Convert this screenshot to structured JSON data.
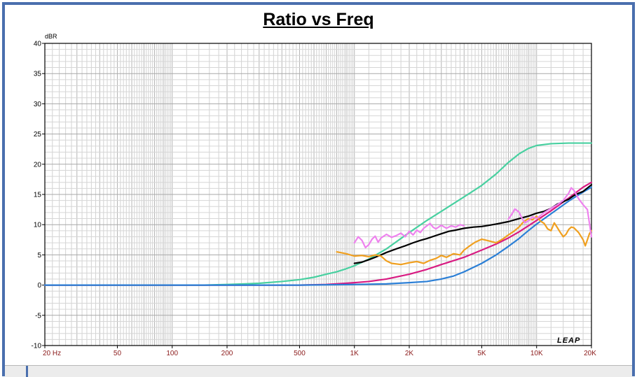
{
  "chart_data": {
    "type": "line",
    "title": "Ratio vs Freq",
    "ylabel": "dBR",
    "xlabel": "",
    "xscale": "log",
    "xlim": [
      20,
      20000
    ],
    "ylim": [
      -10,
      40
    ],
    "grid": true,
    "logo": "LEAP",
    "y_ticks": [
      {
        "v": 40,
        "label": "40"
      },
      {
        "v": 35,
        "label": "35"
      },
      {
        "v": 30,
        "label": "30"
      },
      {
        "v": 25,
        "label": "25"
      },
      {
        "v": 20,
        "label": "20"
      },
      {
        "v": 15,
        "label": "15"
      },
      {
        "v": 10,
        "label": "10"
      },
      {
        "v": 5,
        "label": "5"
      },
      {
        "v": 0,
        "label": "0"
      },
      {
        "v": -5,
        "label": "-5"
      },
      {
        "v": -10,
        "label": "-10"
      }
    ],
    "x_ticks": [
      {
        "v": 20,
        "label": "20  Hz"
      },
      {
        "v": 50,
        "label": "50"
      },
      {
        "v": 100,
        "label": "100"
      },
      {
        "v": 200,
        "label": "200"
      },
      {
        "v": 500,
        "label": "500"
      },
      {
        "v": 1000,
        "label": "1K"
      },
      {
        "v": 2000,
        "label": "2K"
      },
      {
        "v": 5000,
        "label": "5K"
      },
      {
        "v": 10000,
        "label": "10K"
      },
      {
        "v": 20000,
        "label": "20K"
      }
    ],
    "series": [
      {
        "color": "#48d0a0",
        "points": [
          [
            20,
            0
          ],
          [
            100,
            0
          ],
          [
            150,
            0
          ],
          [
            200,
            0.1
          ],
          [
            250,
            0.2
          ],
          [
            300,
            0.3
          ],
          [
            400,
            0.6
          ],
          [
            500,
            0.9
          ],
          [
            600,
            1.3
          ],
          [
            700,
            1.8
          ],
          [
            800,
            2.2
          ],
          [
            900,
            2.7
          ],
          [
            1000,
            3.2
          ],
          [
            1200,
            4.3
          ],
          [
            1500,
            6.0
          ],
          [
            2000,
            8.7
          ],
          [
            2500,
            10.7
          ],
          [
            3000,
            12.2
          ],
          [
            4000,
            14.6
          ],
          [
            5000,
            16.5
          ],
          [
            6000,
            18.4
          ],
          [
            7000,
            20.3
          ],
          [
            8000,
            21.7
          ],
          [
            9000,
            22.6
          ],
          [
            10000,
            23.1
          ],
          [
            12000,
            23.4
          ],
          [
            15000,
            23.5
          ],
          [
            20000,
            23.5
          ]
        ]
      },
      {
        "color": "#d81b82",
        "points": [
          [
            20,
            0
          ],
          [
            300,
            0
          ],
          [
            500,
            0
          ],
          [
            700,
            0.1
          ],
          [
            900,
            0.3
          ],
          [
            1000,
            0.4
          ],
          [
            1200,
            0.6
          ],
          [
            1500,
            1.0
          ],
          [
            2000,
            1.8
          ],
          [
            2500,
            2.6
          ],
          [
            3000,
            3.4
          ],
          [
            4000,
            4.6
          ],
          [
            5000,
            5.8
          ],
          [
            6000,
            6.8
          ],
          [
            7000,
            7.8
          ],
          [
            8000,
            8.8
          ],
          [
            9000,
            9.8
          ],
          [
            10000,
            10.7
          ],
          [
            12000,
            12.3
          ],
          [
            15000,
            14.4
          ],
          [
            18000,
            16.2
          ],
          [
            20000,
            17.0
          ]
        ]
      },
      {
        "color": "#2b7fd6",
        "points": [
          [
            20,
            0
          ],
          [
            500,
            0
          ],
          [
            1000,
            0.1
          ],
          [
            1500,
            0.2
          ],
          [
            2000,
            0.4
          ],
          [
            2500,
            0.6
          ],
          [
            3000,
            1.0
          ],
          [
            3500,
            1.5
          ],
          [
            4000,
            2.2
          ],
          [
            5000,
            3.6
          ],
          [
            6000,
            5.0
          ],
          [
            7000,
            6.4
          ],
          [
            8000,
            7.7
          ],
          [
            9000,
            9.0
          ],
          [
            10000,
            10.1
          ],
          [
            12000,
            11.8
          ],
          [
            15000,
            13.9
          ],
          [
            18000,
            15.4
          ],
          [
            20000,
            16.2
          ]
        ]
      },
      {
        "color": "#000000",
        "points": [
          [
            1000,
            3.6
          ],
          [
            1100,
            3.8
          ],
          [
            1200,
            4.2
          ],
          [
            1300,
            4.6
          ],
          [
            1400,
            5.0
          ],
          [
            1500,
            5.4
          ],
          [
            1700,
            6.0
          ],
          [
            1900,
            6.5
          ],
          [
            2100,
            7.0
          ],
          [
            2300,
            7.4
          ],
          [
            2500,
            7.7
          ],
          [
            2800,
            8.2
          ],
          [
            3000,
            8.5
          ],
          [
            3300,
            8.9
          ],
          [
            3600,
            9.1
          ],
          [
            4000,
            9.4
          ],
          [
            4500,
            9.6
          ],
          [
            5000,
            9.7
          ],
          [
            5500,
            9.9
          ],
          [
            6000,
            10.1
          ],
          [
            7000,
            10.5
          ],
          [
            8000,
            11.0
          ],
          [
            9000,
            11.4
          ],
          [
            10000,
            11.9
          ],
          [
            11000,
            12.2
          ],
          [
            12000,
            12.7
          ],
          [
            13000,
            13.4
          ],
          [
            14000,
            13.8
          ],
          [
            15000,
            14.2
          ],
          [
            16000,
            14.8
          ],
          [
            17000,
            15.2
          ],
          [
            18000,
            15.5
          ],
          [
            20000,
            16.6
          ]
        ]
      },
      {
        "color": "#f0a020",
        "points": [
          [
            800,
            5.5
          ],
          [
            900,
            5.2
          ],
          [
            1000,
            4.8
          ],
          [
            1100,
            4.9
          ],
          [
            1200,
            4.7
          ],
          [
            1300,
            5.0
          ],
          [
            1400,
            4.8
          ],
          [
            1500,
            4.0
          ],
          [
            1600,
            3.6
          ],
          [
            1800,
            3.4
          ],
          [
            2000,
            3.7
          ],
          [
            2200,
            3.9
          ],
          [
            2400,
            3.6
          ],
          [
            2600,
            4.1
          ],
          [
            2800,
            4.4
          ],
          [
            3000,
            4.9
          ],
          [
            3200,
            4.6
          ],
          [
            3500,
            5.2
          ],
          [
            3800,
            5.0
          ],
          [
            4000,
            5.8
          ],
          [
            4300,
            6.5
          ],
          [
            4600,
            7.1
          ],
          [
            5000,
            7.6
          ],
          [
            5500,
            7.3
          ],
          [
            6000,
            7.0
          ],
          [
            6500,
            7.6
          ],
          [
            7000,
            8.3
          ],
          [
            7500,
            8.9
          ],
          [
            8000,
            9.6
          ],
          [
            8500,
            10.5
          ],
          [
            9000,
            11.0
          ],
          [
            9500,
            10.8
          ],
          [
            10000,
            11.4
          ],
          [
            10500,
            10.6
          ],
          [
            11000,
            10.2
          ],
          [
            11500,
            9.3
          ],
          [
            12000,
            9.0
          ],
          [
            12500,
            10.3
          ],
          [
            13000,
            9.5
          ],
          [
            13500,
            8.7
          ],
          [
            14000,
            8.0
          ],
          [
            14500,
            8.4
          ],
          [
            15000,
            9.2
          ],
          [
            15500,
            9.6
          ],
          [
            16000,
            9.5
          ],
          [
            17000,
            8.7
          ],
          [
            18000,
            7.5
          ],
          [
            18500,
            6.5
          ],
          [
            19000,
            7.5
          ],
          [
            19500,
            8.5
          ],
          [
            20000,
            9.0
          ]
        ]
      },
      {
        "color": "#ee82ee",
        "points": [
          [
            1000,
            7.0
          ],
          [
            1050,
            8.0
          ],
          [
            1100,
            7.4
          ],
          [
            1150,
            6.2
          ],
          [
            1200,
            6.7
          ],
          [
            1250,
            7.6
          ],
          [
            1300,
            8.1
          ],
          [
            1350,
            7.1
          ],
          [
            1400,
            7.8
          ],
          [
            1500,
            8.4
          ],
          [
            1600,
            7.9
          ],
          [
            1700,
            8.2
          ],
          [
            1800,
            8.6
          ],
          [
            1900,
            8.0
          ],
          [
            2000,
            8.9
          ],
          [
            2100,
            8.3
          ],
          [
            2200,
            9.1
          ],
          [
            2300,
            8.7
          ],
          [
            2400,
            9.4
          ],
          [
            2500,
            9.8
          ],
          [
            2600,
            10.2
          ],
          [
            2700,
            9.6
          ],
          [
            2800,
            9.3
          ],
          [
            3000,
            9.9
          ],
          [
            3200,
            9.4
          ],
          [
            3400,
            9.8
          ],
          [
            3600,
            9.6
          ],
          [
            3800,
            10.0
          ],
          [
            4000,
            9.8
          ]
        ]
      },
      {
        "color": "#ee82ee",
        "points": [
          [
            7000,
            10.9
          ],
          [
            7300,
            11.7
          ],
          [
            7600,
            12.6
          ],
          [
            8000,
            12.1
          ],
          [
            8300,
            11.1
          ],
          [
            8600,
            10.3
          ],
          [
            9000,
            10.6
          ],
          [
            9500,
            11.3
          ],
          [
            10000,
            11.0
          ],
          [
            11000,
            12.0
          ],
          [
            12000,
            12.7
          ],
          [
            13000,
            13.3
          ],
          [
            14000,
            14.0
          ],
          [
            15000,
            15.2
          ],
          [
            15500,
            16.1
          ],
          [
            16000,
            15.7
          ],
          [
            17000,
            14.3
          ],
          [
            18000,
            13.3
          ],
          [
            19000,
            12.5
          ],
          [
            20000,
            8.0
          ]
        ]
      }
    ]
  }
}
